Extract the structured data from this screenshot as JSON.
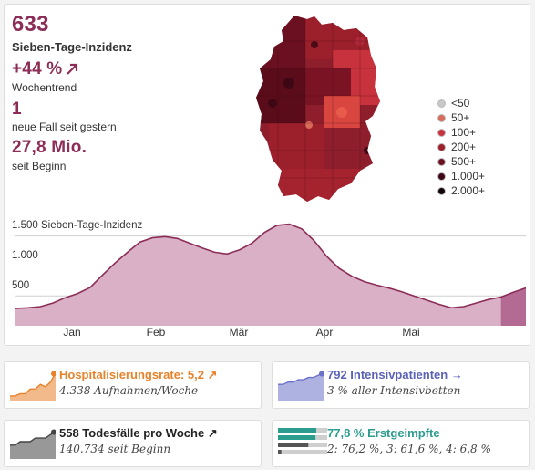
{
  "main": {
    "incidence_value": "633",
    "incidence_label": "Sieben-Tage-Inzidenz",
    "trend_value": "+44 %",
    "trend_label": "Wochentrend",
    "new_cases_value": "1",
    "new_cases_label": "neue Fall seit gestern",
    "total_value": "27,8 Mio.",
    "total_label": "seit Beginn"
  },
  "legend": [
    {
      "label": "<50",
      "color": "#c8c8c8"
    },
    {
      "label": "50+",
      "color": "#d96b5a"
    },
    {
      "label": "100+",
      "color": "#c8323c"
    },
    {
      "label": "200+",
      "color": "#9c1f2c"
    },
    {
      "label": "500+",
      "color": "#6b1020"
    },
    {
      "label": "1.000+",
      "color": "#3d0814"
    },
    {
      "label": "2.000+",
      "color": "#120306"
    }
  ],
  "chart_data": {
    "type": "area",
    "title": "Sieben-Tage-Inzidenz",
    "ylabel": "Sieben-Tage-Inzidenz",
    "yticks": [
      "500",
      "1.000",
      "1.500"
    ],
    "ylim": [
      0,
      1800
    ],
    "months": [
      "Jan",
      "Feb",
      "Mär",
      "Apr",
      "Mai"
    ],
    "series": [
      {
        "name": "Sieben-Tage-Inzidenz",
        "values": [
          290,
          300,
          320,
          380,
          470,
          540,
          640,
          850,
          1050,
          1230,
          1400,
          1470,
          1490,
          1460,
          1380,
          1300,
          1230,
          1200,
          1270,
          1380,
          1560,
          1680,
          1700,
          1620,
          1420,
          1160,
          960,
          830,
          740,
          680,
          630,
          570,
          500,
          430,
          360,
          300,
          320,
          380,
          440,
          480,
          560,
          633
        ]
      }
    ],
    "highlight_last_n": 3
  },
  "cards": {
    "hosp": {
      "title": "Hospitalisierungsrate: 5,2",
      "sub": "4.338 Aufnahmen/Woche",
      "color": "#e8822a",
      "spark": [
        2,
        2,
        3,
        3,
        5,
        5,
        7,
        6,
        8,
        12
      ]
    },
    "icu": {
      "title": "792 Intensivpatienten",
      "sub": "3 % aller Intensivbetten",
      "color": "#6b72c9",
      "spark": [
        7,
        7,
        8,
        8,
        9,
        9,
        10,
        10,
        11,
        12
      ]
    },
    "deaths": {
      "title": "558 Todesfälle pro Woche",
      "sub": "140.734 seit Beginn",
      "color": "#444444",
      "spark": [
        4,
        4,
        5,
        5,
        5,
        6,
        6,
        6,
        7,
        8
      ]
    },
    "vacc": {
      "title": "77,8 % Erstgeimpfte",
      "sub": "2: 76,2 %, 3: 61,6 %, 4: 6,8 %",
      "color": "#2a9d8f",
      "bars": [
        0.778,
        0.762,
        0.616,
        0.068
      ]
    }
  }
}
